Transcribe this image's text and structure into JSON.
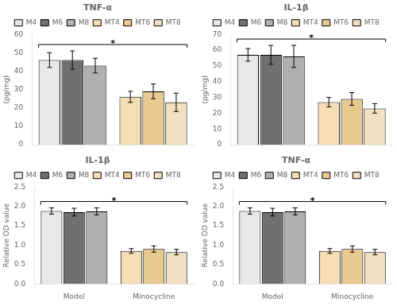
{
  "chart_data": [
    {
      "type": "bar",
      "title": "TNF-α",
      "y_label": "(pg/mg)",
      "categories": [
        null,
        null
      ],
      "series": [
        {
          "name": "M4",
          "color": "#e8e8e8",
          "values": [
            46,
            null
          ],
          "errors": [
            4,
            null
          ]
        },
        {
          "name": "M6",
          "color": "#707070",
          "values": [
            46,
            null
          ],
          "errors": [
            5,
            null
          ]
        },
        {
          "name": "M8",
          "color": "#b0b0b0",
          "values": [
            43,
            null
          ],
          "errors": [
            4,
            null
          ]
        },
        {
          "name": "MT4",
          "color": "#f5deb3",
          "values": [
            null,
            26
          ],
          "errors": [
            null,
            3
          ]
        },
        {
          "name": "MT6",
          "color": "#e8c990",
          "values": [
            null,
            29
          ],
          "errors": [
            null,
            4
          ]
        },
        {
          "name": "MT8",
          "color": "#f0e0c0",
          "values": [
            null,
            23
          ],
          "errors": [
            null,
            5
          ]
        }
      ],
      "ylim": [
        0,
        60
      ],
      "yticks": [
        0,
        10,
        20,
        30,
        40,
        50,
        60
      ],
      "grid": false,
      "legend": "top",
      "tick_labels": "y",
      "annotations": [
        "*"
      ]
    },
    {
      "type": "bar",
      "title": "IL-1β",
      "y_label": "(pg/mg)",
      "categories": [
        null,
        null
      ],
      "series": [
        {
          "name": "M4",
          "color": "#e8e8e8",
          "values": [
            57,
            null
          ],
          "errors": [
            4,
            null
          ]
        },
        {
          "name": "M6",
          "color": "#707070",
          "values": [
            57,
            null
          ],
          "errors": [
            6,
            null
          ]
        },
        {
          "name": "M8",
          "color": "#b0b0b0",
          "values": [
            56,
            null
          ],
          "errors": [
            7,
            null
          ]
        },
        {
          "name": "MT4",
          "color": "#f5deb3",
          "values": [
            null,
            27
          ],
          "errors": [
            null,
            3
          ]
        },
        {
          "name": "MT6",
          "color": "#e8c990",
          "values": [
            null,
            29
          ],
          "errors": [
            null,
            4
          ]
        },
        {
          "name": "MT8",
          "color": "#f0e0c0",
          "values": [
            null,
            23
          ],
          "errors": [
            null,
            3
          ]
        }
      ],
      "ylim": [
        0,
        70
      ],
      "yticks": [
        0,
        10,
        20,
        30,
        40,
        50,
        60,
        70
      ],
      "grid": false,
      "legend": "top",
      "tick_labels": "y",
      "annotations": [
        "*"
      ]
    },
    {
      "type": "bar",
      "title": "IL-1β",
      "y_label": "Relative OD value",
      "categories": [
        "Model",
        "Minocycline"
      ],
      "series": [
        {
          "name": "M4",
          "color": "#e8e8e8",
          "values": [
            1.88,
            null
          ],
          "errors": [
            0.08,
            null
          ]
        },
        {
          "name": "M6",
          "color": "#707070",
          "values": [
            1.85,
            null
          ],
          "errors": [
            0.1,
            null
          ]
        },
        {
          "name": "M8",
          "color": "#b0b0b0",
          "values": [
            1.87,
            null
          ],
          "errors": [
            0.09,
            null
          ]
        },
        {
          "name": "MT4",
          "color": "#f5deb3",
          "values": [
            null,
            0.85
          ],
          "errors": [
            null,
            0.06
          ]
        },
        {
          "name": "MT6",
          "color": "#e8c990",
          "values": [
            null,
            0.9
          ],
          "errors": [
            null,
            0.08
          ]
        },
        {
          "name": "MT8",
          "color": "#f0e0c0",
          "values": [
            null,
            0.82
          ],
          "errors": [
            null,
            0.07
          ]
        }
      ],
      "ylim": [
        0,
        2.5
      ],
      "yticks": [
        {
          "value": 0,
          "label": "0.0"
        },
        0.5,
        {
          "value": 1,
          "label": "1.0"
        },
        1.5,
        {
          "value": 2,
          "label": "2.0"
        },
        2.5
      ],
      "grid": false,
      "legend": "top",
      "annotations": [
        "*"
      ]
    },
    {
      "type": "bar",
      "title": "TNF-α",
      "y_label": "Relative OD value",
      "categories": [
        "Model",
        "Minocycline"
      ],
      "series": [
        {
          "name": "M4",
          "color": "#e8e8e8",
          "values": [
            1.88,
            null
          ],
          "errors": [
            0.08,
            null
          ]
        },
        {
          "name": "M6",
          "color": "#707070",
          "values": [
            1.85,
            null
          ],
          "errors": [
            0.1,
            null
          ]
        },
        {
          "name": "M8",
          "color": "#b0b0b0",
          "values": [
            1.87,
            null
          ],
          "errors": [
            0.09,
            null
          ]
        },
        {
          "name": "MT4",
          "color": "#f5deb3",
          "values": [
            null,
            0.85
          ],
          "errors": [
            null,
            0.06
          ]
        },
        {
          "name": "MT6",
          "color": "#e8c990",
          "values": [
            null,
            0.9
          ],
          "errors": [
            null,
            0.08
          ]
        },
        {
          "name": "MT8",
          "color": "#f0e0c0",
          "values": [
            null,
            0.82
          ],
          "errors": [
            null,
            0.07
          ]
        }
      ],
      "ylim": [
        0,
        2.5
      ],
      "yticks": [
        {
          "value": 0,
          "label": "0.0"
        },
        0.5,
        {
          "value": 1,
          "label": "1.0"
        },
        1.5,
        {
          "value": 2,
          "label": "2.0"
        },
        2.5
      ],
      "grid": false,
      "legend": "top",
      "annotations": [
        "*"
      ]
    }
  ]
}
